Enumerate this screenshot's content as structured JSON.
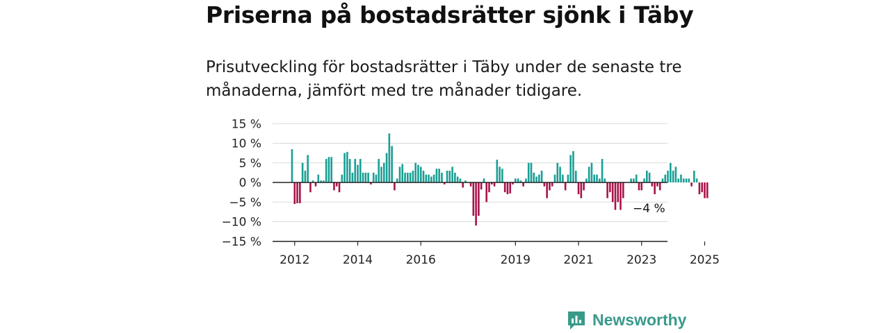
{
  "title": "Priserna på bostadsrätter sjönk i Täby",
  "subtitle": "Prisutveckling för bostadsrätter i Täby under de senaste tre månaderna, jämfört med tre månader tidigare.",
  "brand": {
    "name": "Newsworthy"
  },
  "colors": {
    "positive": "#1a9e95",
    "negative": "#a8134a",
    "grid": "#d9d9d9",
    "zero": "#222222",
    "brand": "#3a9a8a"
  },
  "chart_data": {
    "type": "bar",
    "unit": "%",
    "x_start": "2011-12",
    "x_end": "2025-09",
    "x_ticks": [
      "2012",
      "2014",
      "2016",
      "2019",
      "2021",
      "2023",
      "2025"
    ],
    "y_ticks": [
      "15 %",
      "10 %",
      "5 %",
      "0 %",
      "−5 %",
      "−10 %",
      "−15 %"
    ],
    "ylim": [
      -15,
      15
    ],
    "last_value_label": "−4 %",
    "values": [
      8.5,
      -5.5,
      -5.3,
      -5.3,
      5,
      3,
      7,
      -2.5,
      0.5,
      -1,
      2,
      0.5,
      0.5,
      6,
      6.5,
      6.5,
      -2,
      -1,
      -2.5,
      2,
      7.5,
      7.8,
      6,
      2.5,
      6,
      4.5,
      6,
      2.5,
      2.5,
      2.5,
      -0.5,
      2.5,
      2,
      6,
      4,
      5,
      7.5,
      12.5,
      9.3,
      -2,
      1,
      4,
      4.7,
      2.5,
      2.5,
      2.5,
      3,
      5,
      4.5,
      4,
      3,
      2,
      2,
      1.5,
      2,
      3.5,
      3.5,
      2.5,
      -0.5,
      3,
      3,
      4,
      2.5,
      1.5,
      1,
      -1.3,
      0.5,
      0,
      -1,
      -8.5,
      -11,
      -8.5,
      -1.8,
      1,
      -5,
      -2.5,
      -0.5,
      -1,
      5.8,
      4,
      3.5,
      -2.5,
      -3,
      -2.8,
      -0.5,
      1,
      1,
      0.5,
      -1,
      1,
      5,
      5,
      2.5,
      1.5,
      2,
      3,
      -1,
      -4,
      -2,
      -1,
      2,
      5,
      4,
      2,
      -2,
      2,
      7,
      8,
      3,
      -3,
      -4,
      -2,
      1,
      4,
      5,
      2,
      2,
      1,
      6,
      1,
      -4,
      -2.5,
      -5,
      -7,
      -5,
      -7,
      -4,
      0,
      0,
      1,
      1,
      2,
      -2,
      -2,
      1,
      3,
      2.5,
      -1,
      -3,
      -1,
      -2,
      1,
      2,
      3,
      5,
      3,
      4,
      1,
      2,
      1,
      1,
      1,
      -1,
      3,
      1,
      -3,
      -2.5,
      -4,
      -4
    ]
  }
}
